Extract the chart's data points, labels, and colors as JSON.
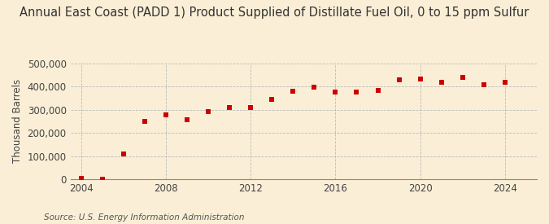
{
  "title": "Annual East Coast (PADD 1) Product Supplied of Distillate Fuel Oil, 0 to 15 ppm Sulfur",
  "ylabel": "Thousand Barrels",
  "source": "Source: U.S. Energy Information Administration",
  "background_color": "#faefd6",
  "marker_color": "#cc0000",
  "years": [
    2004,
    2005,
    2006,
    2007,
    2008,
    2009,
    2010,
    2011,
    2012,
    2013,
    2014,
    2015,
    2016,
    2017,
    2018,
    2019,
    2020,
    2021,
    2022,
    2023,
    2024
  ],
  "values": [
    3000,
    2000,
    110000,
    250000,
    278000,
    257000,
    293000,
    309000,
    309000,
    343000,
    378000,
    397000,
    377000,
    375000,
    382000,
    427000,
    431000,
    416000,
    437000,
    408000,
    417000
  ],
  "ylim": [
    0,
    500000
  ],
  "xlim": [
    2003.5,
    2025.5
  ],
  "yticks": [
    0,
    100000,
    200000,
    300000,
    400000,
    500000
  ],
  "xticks": [
    2004,
    2008,
    2012,
    2016,
    2020,
    2024
  ],
  "grid_color": "#bbbbbb",
  "title_fontsize": 10.5,
  "label_fontsize": 8.5,
  "tick_fontsize": 8.5,
  "source_fontsize": 7.5
}
